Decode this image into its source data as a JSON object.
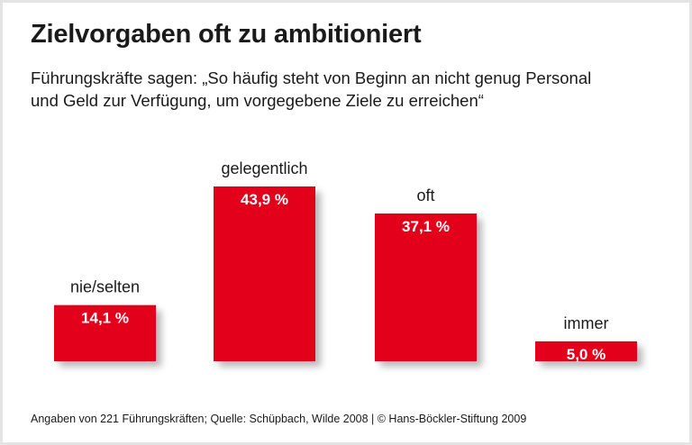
{
  "title": "Zielvorgaben oft zu ambitioniert",
  "subtitle_line1": "Führungskräfte sagen: „So häufig steht von Beginn an nicht genug Personal",
  "subtitle_line2": "und Geld zur Verfügung, um vorgegebene Ziele zu erreichen“",
  "footer": "Angaben von 221 Führungskräften; Quelle: Schüpbach, Wilde 2008 | © Hans-Böckler-Stiftung 2009",
  "colors": {
    "bar": "#e2001a",
    "border": "#e4e4e4"
  },
  "chart_data": {
    "type": "bar",
    "categories": [
      "nie/selten",
      "gelegentlich",
      "oft",
      "immer"
    ],
    "values": [
      14.1,
      43.9,
      37.1,
      5.0
    ],
    "value_labels": [
      "14,1 %",
      "43,9 %",
      "37,1 %",
      "5,0 %"
    ],
    "unit": "%",
    "grid": false,
    "legend": "none"
  }
}
